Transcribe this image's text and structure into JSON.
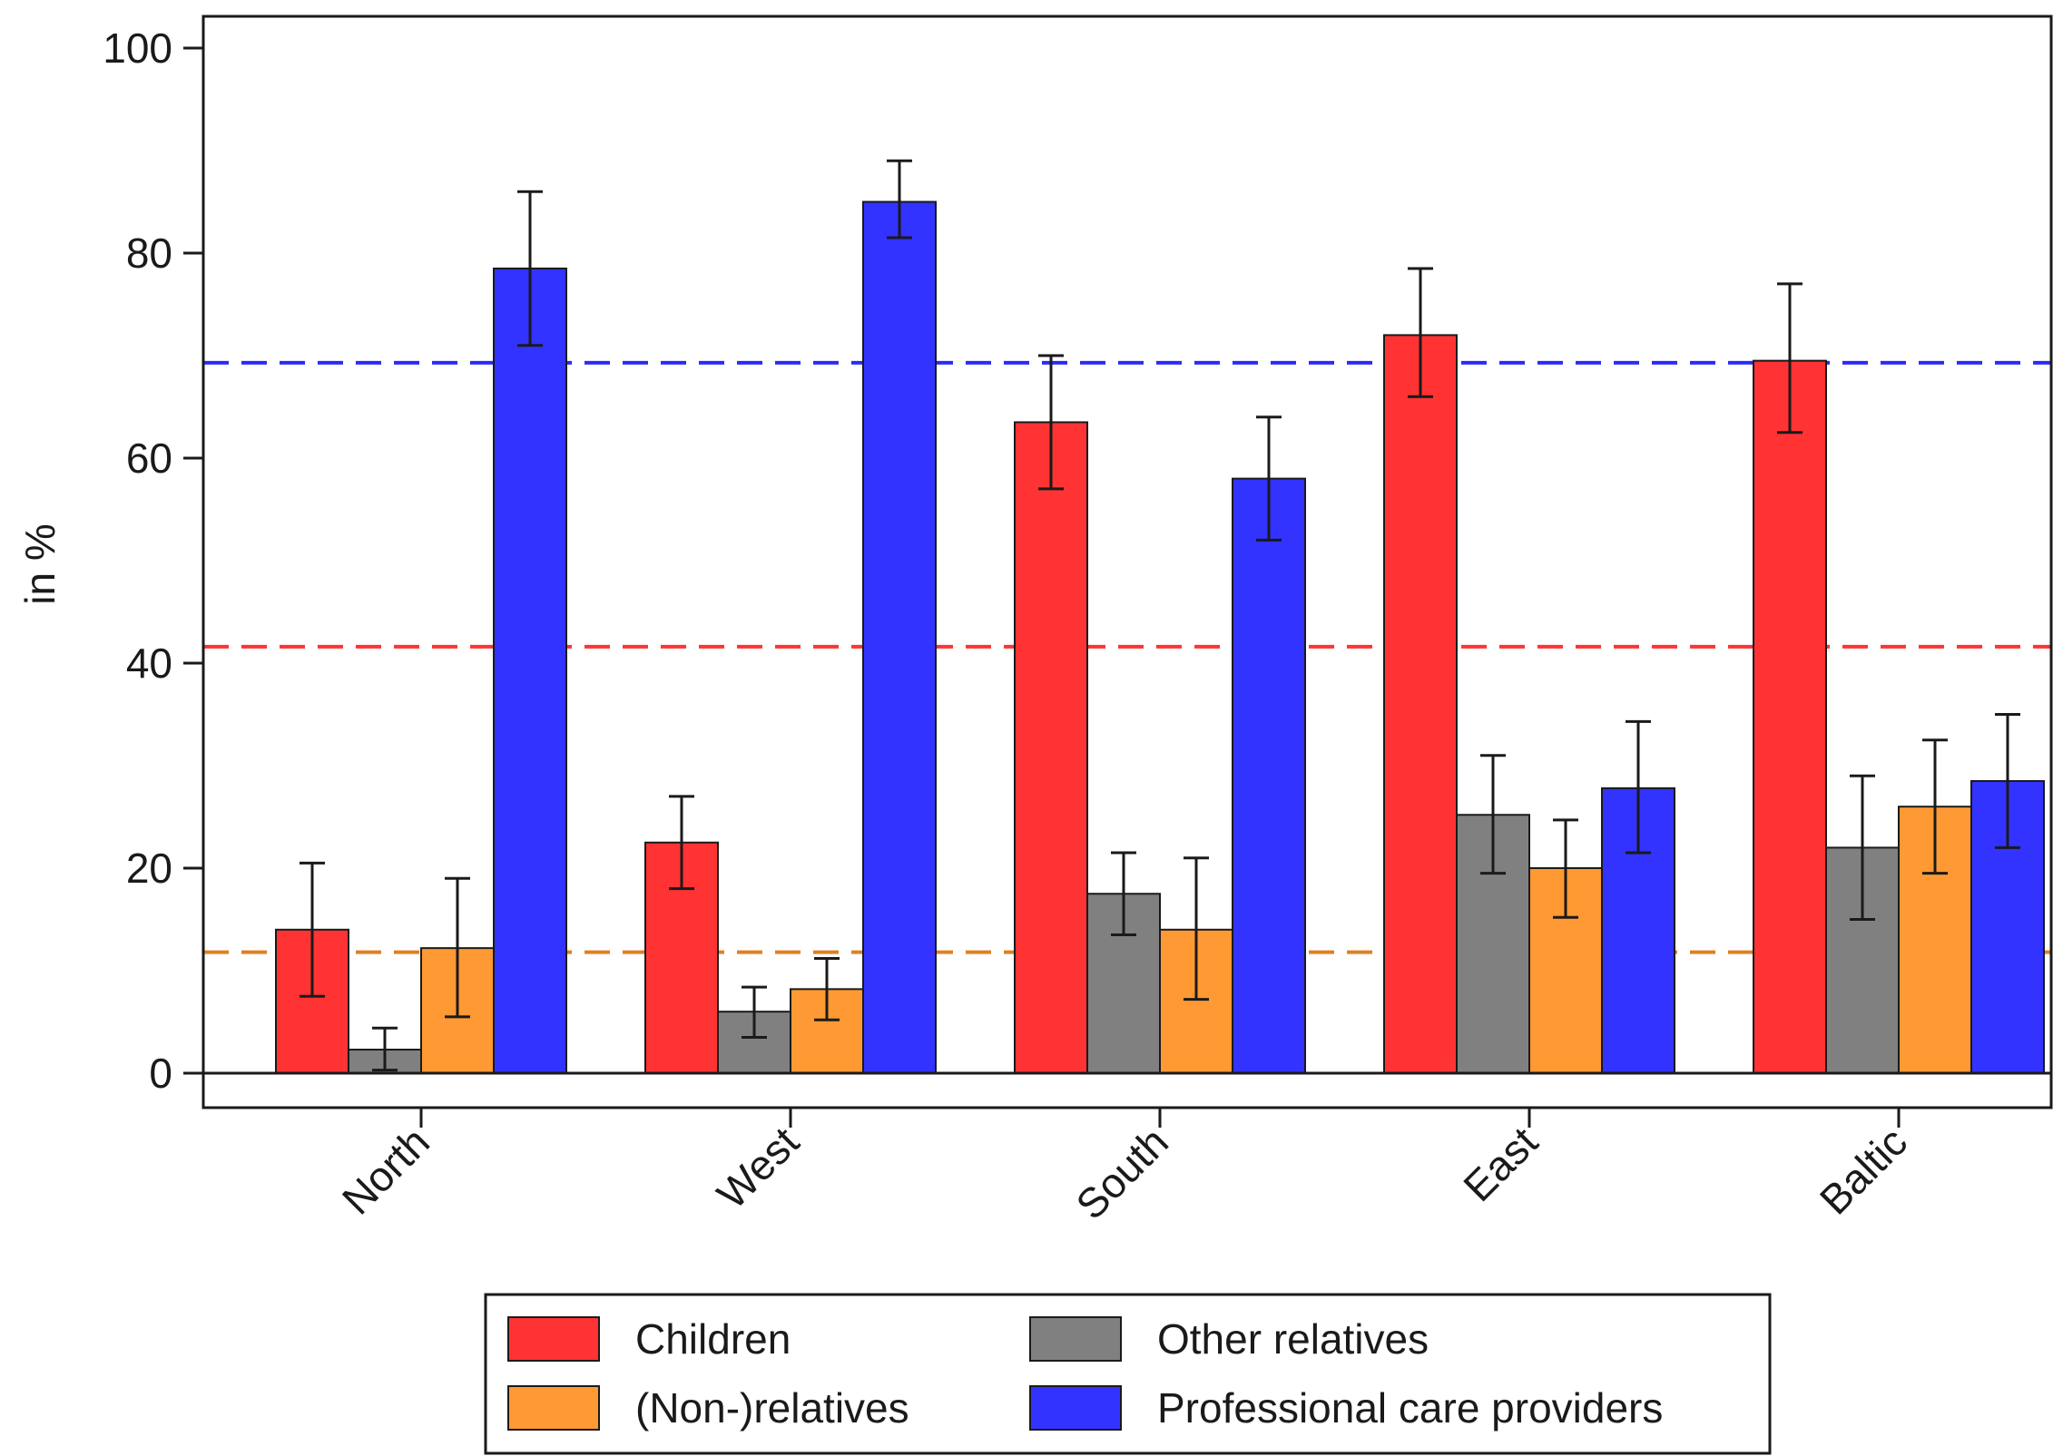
{
  "chart_data": {
    "type": "bar",
    "title": "",
    "xlabel": "",
    "ylabel": "in %",
    "ylim": [
      0,
      100
    ],
    "yticks": [
      0,
      20,
      40,
      60,
      80,
      100
    ],
    "grid": false,
    "legend_position": "bottom",
    "categories": [
      "North",
      "West",
      "South",
      "East",
      "Baltic"
    ],
    "series": [
      {
        "name": "Children",
        "color": "#ff3333",
        "values": [
          14,
          22.5,
          63.5,
          72,
          69.5
        ],
        "ci_low": [
          7.5,
          18,
          57,
          66,
          62.5
        ],
        "ci_high": [
          20.5,
          27,
          70,
          78.5,
          77
        ]
      },
      {
        "name": "Other relatives",
        "color": "#808080",
        "values": [
          2.3,
          6,
          17.5,
          25.2,
          22
        ],
        "ci_low": [
          0.3,
          3.5,
          13.5,
          19.5,
          15
        ],
        "ci_high": [
          4.4,
          8.4,
          21.5,
          31,
          29
        ]
      },
      {
        "name": "(Non-)relatives",
        "color": "#ff9933",
        "values": [
          12.2,
          8.2,
          14,
          20,
          26
        ],
        "ci_low": [
          5.5,
          5.2,
          7.2,
          15.2,
          19.5
        ],
        "ci_high": [
          19,
          11.2,
          21,
          24.7,
          32.5
        ]
      },
      {
        "name": "Professional care providers",
        "color": "#3333ff",
        "values": [
          78.5,
          85,
          58,
          27.8,
          28.5
        ],
        "ci_low": [
          71,
          81.5,
          52,
          21.5,
          22
        ],
        "ci_high": [
          86,
          89,
          64,
          34.3,
          35
        ]
      }
    ],
    "reference_lines": [
      {
        "y": 69.3,
        "color": "#2a2aff",
        "style": "dashed"
      },
      {
        "y": 41.6,
        "color": "#ff3333",
        "style": "dashed"
      },
      {
        "y": 11.8,
        "color": "#e08020",
        "style": "dashed"
      }
    ],
    "legend_order": [
      "Children",
      "Other relatives",
      "(Non-)relatives",
      "Professional care providers"
    ]
  }
}
